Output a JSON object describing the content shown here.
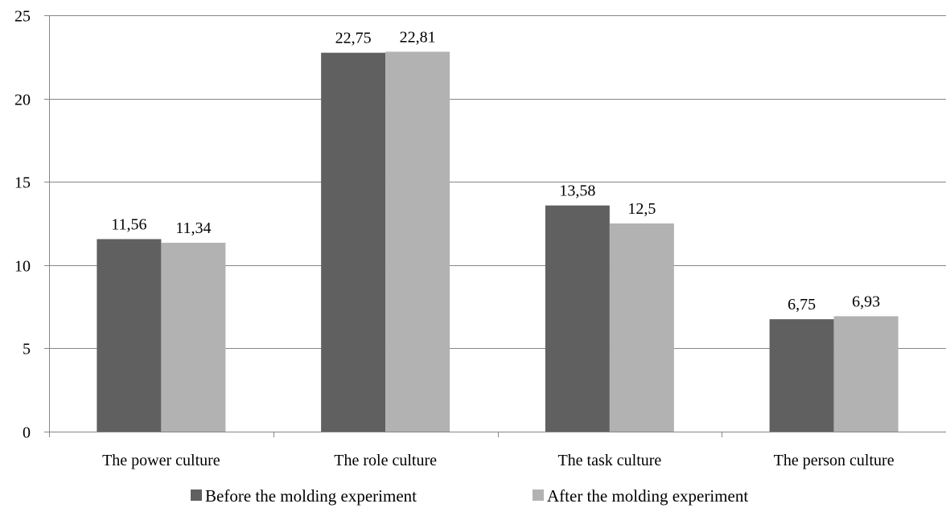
{
  "chart_data": {
    "type": "bar",
    "title": "",
    "xlabel": "",
    "ylabel": "",
    "ylim": [
      0,
      25
    ],
    "yticks": [
      0,
      5,
      10,
      15,
      20,
      25
    ],
    "grid": "horizontal",
    "legend_position": "bottom",
    "categories": [
      "The power culture",
      "The role culture",
      "The task culture",
      "The person culture"
    ],
    "series": [
      {
        "name": "Before the molding experiment",
        "color": "#606060",
        "values": [
          11.56,
          22.75,
          13.58,
          6.75
        ],
        "labels": [
          "11,56",
          "22,75",
          "13,58",
          "6,75"
        ]
      },
      {
        "name": "After the molding experiment",
        "color": "#b2b2b2",
        "values": [
          11.34,
          22.81,
          12.5,
          6.93
        ],
        "labels": [
          "11,34",
          "22,81",
          "12,5",
          "6,93"
        ]
      }
    ]
  }
}
